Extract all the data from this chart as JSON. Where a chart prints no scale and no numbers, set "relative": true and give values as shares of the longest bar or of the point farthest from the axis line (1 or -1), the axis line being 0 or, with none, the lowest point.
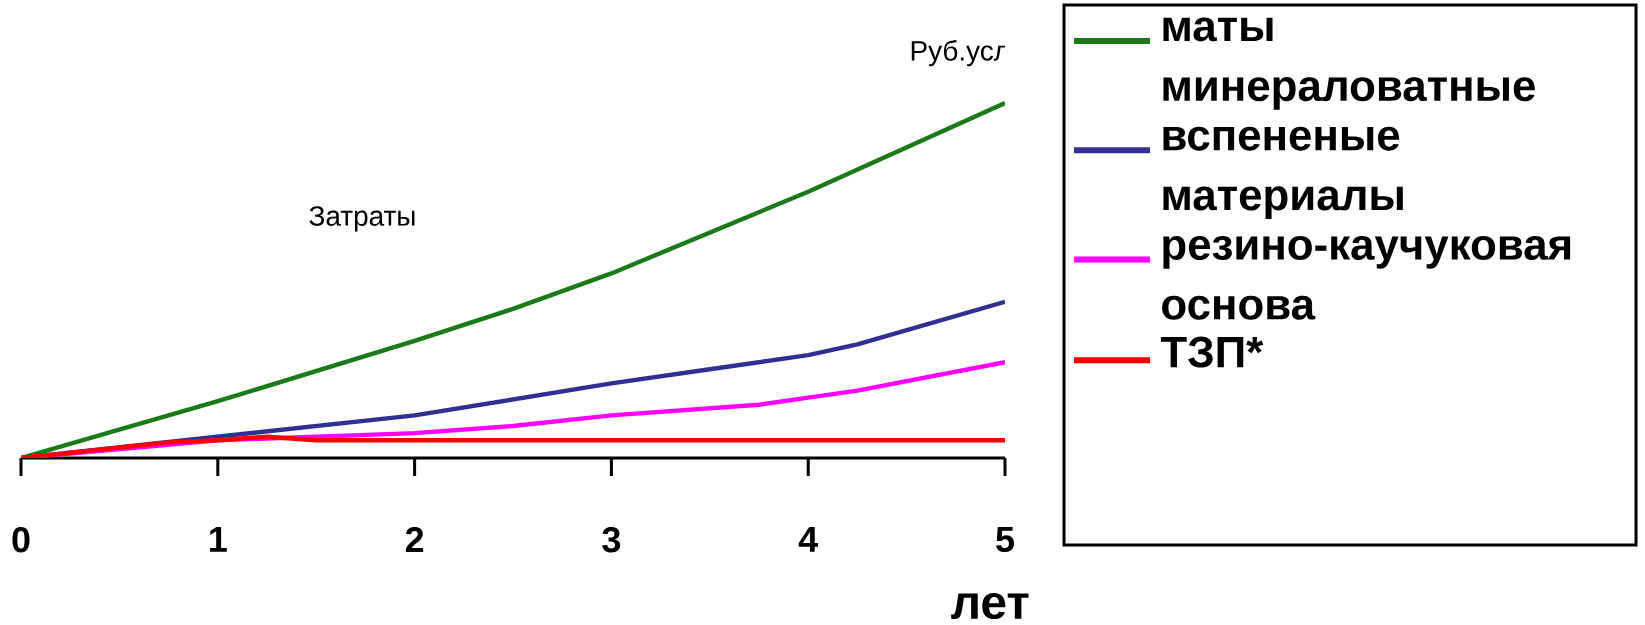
{
  "chart_data": {
    "type": "line",
    "relative": true,
    "xlabel": "лет",
    "ylabel": "Руб.усл",
    "annotations": [
      "Затраты"
    ],
    "xlim": [
      0,
      5
    ],
    "xticks": [
      0,
      1,
      2,
      3,
      4,
      5
    ],
    "legend": "right",
    "line_style": "solid",
    "series": [
      {
        "name": "маты минераловатные",
        "color": "#1a7a1a",
        "x": [
          0,
          1,
          2,
          2.5,
          3,
          4,
          5
        ],
        "values": [
          0,
          0.16,
          0.33,
          0.42,
          0.52,
          0.75,
          1
        ]
      },
      {
        "name": "вспененые материалы",
        "color": "#2e3192",
        "x": [
          0,
          1,
          2,
          3,
          3.5,
          4,
          4.25,
          5
        ],
        "values": [
          0,
          null,
          0.12,
          0.21,
          0.25,
          0.29,
          0.32,
          0.44
        ]
      },
      {
        "name": "резино-каучуковая основа",
        "color": "#ff00ff",
        "x": [
          0,
          1,
          2,
          2.5,
          3,
          3.75,
          4,
          4.25,
          5
        ],
        "values": [
          0,
          0.05,
          0.07,
          0.09,
          0.12,
          0.15,
          0.17,
          0.19,
          0.27
        ]
      },
      {
        "name": "ТЗП*",
        "color": "#ff0000",
        "x": [
          0,
          0.75,
          1,
          1.25,
          1.5,
          5
        ],
        "values": [
          0,
          0.044,
          0.05,
          0.06,
          0.05,
          0.05
        ]
      }
    ]
  }
}
